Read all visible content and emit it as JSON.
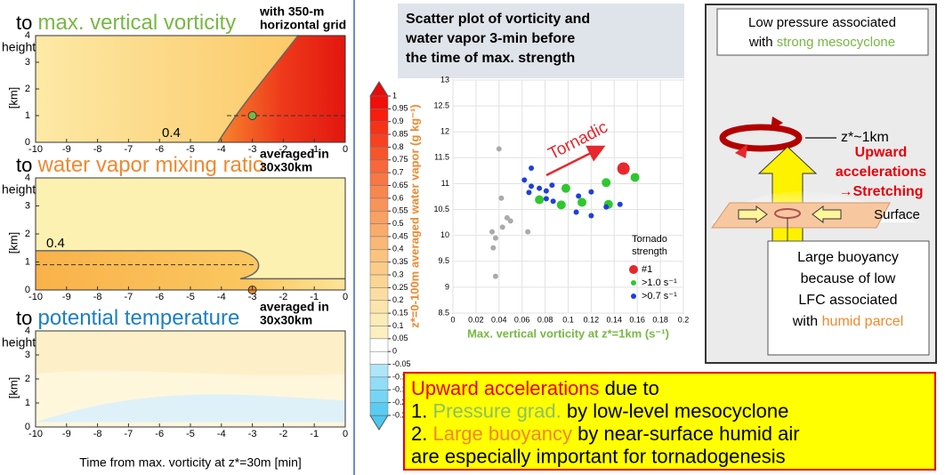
{
  "left": {
    "panels": [
      {
        "prefix": "to",
        "variable": "max. vertical vorticity",
        "color": "#77b843",
        "note": [
          "with 350-m",
          "horizontal grid"
        ],
        "contour_label": "0.4"
      },
      {
        "prefix": "to",
        "variable": "water vapor mixing ratio",
        "color": "#f0882e",
        "note": [
          "averaged in",
          "30x30km"
        ],
        "contour_label": "0.4"
      },
      {
        "prefix": "to",
        "variable": "potential temperature",
        "color": "#1b80c4",
        "note": [
          "averaged in",
          "30x30km"
        ]
      }
    ],
    "ylabel": "height",
    "yunit": "[km]",
    "xticks": [
      -10,
      -9,
      -8,
      -7,
      -6,
      -5,
      -4,
      -3,
      -2,
      -1,
      0
    ],
    "yticks": [
      0,
      1,
      2,
      3,
      4
    ],
    "xlabel": "Time from max. vorticity at z*=30m [min]"
  },
  "colorbar": {
    "ticks": [
      1,
      0.95,
      0.9,
      0.85,
      0.8,
      0.75,
      0.7,
      0.65,
      0.6,
      0.55,
      0.5,
      0.45,
      0.4,
      0.35,
      0.3,
      0.25,
      0.2,
      0.15,
      0.1,
      0.05,
      0,
      -0.05,
      -0.1,
      -0.15,
      -0.2,
      -0.25
    ]
  },
  "chart_data": {
    "type": "scatter",
    "title": [
      "Scatter plot of vorticity and",
      "water vapor 3-min before",
      "the time of max. strength"
    ],
    "xlabel": "Max. vertical vorticity at z*=1km (s⁻¹)",
    "xlabel_color": "#77b843",
    "ylabel": "z*=0-100m averaged water vapor (g kg⁻¹)",
    "ylabel_color": "#f0882e",
    "xlim": [
      0,
      0.2
    ],
    "xticks": [
      0,
      0.02,
      0.04,
      0.06,
      0.08,
      0.1,
      0.12,
      0.14,
      0.16,
      0.18,
      0.2
    ],
    "ylim": [
      8.5,
      13
    ],
    "yticks": [
      8.5,
      9,
      9.5,
      10,
      10.5,
      11,
      11.5,
      12,
      12.5,
      13
    ],
    "grid": true,
    "annotation": "Tornadic",
    "legend_title": [
      "Tornado",
      "strength"
    ],
    "series": [
      {
        "color": "#aaaaaa",
        "size": 3,
        "x": [
          0.04,
          0.042,
          0.047,
          0.05,
          0.043,
          0.034,
          0.037,
          0.035,
          0.065,
          0.037
        ],
        "values": [
          11.67,
          10.72,
          10.34,
          10.28,
          10.16,
          10.07,
          9.95,
          9.76,
          10.07,
          9.21
        ]
      },
      {
        "name": "#1",
        "color": "#e8262b",
        "size": 7,
        "x": [
          0.148
        ],
        "values": [
          11.29
        ]
      },
      {
        "name": ">1.0 s⁻¹",
        "color": "#2ec82e",
        "size": 5,
        "x": [
          0.158,
          0.133,
          0.098,
          0.075,
          0.112,
          0.094,
          0.135
        ],
        "values": [
          11.12,
          11.02,
          10.91,
          10.69,
          10.64,
          10.59,
          10.6
        ]
      },
      {
        "name": ">0.7 s⁻¹",
        "color": "#1f3fdc",
        "size": 3,
        "x": [
          0.068,
          0.062,
          0.068,
          0.075,
          0.066,
          0.081,
          0.086,
          0.081,
          0.087,
          0.109,
          0.12,
          0.107,
          0.12,
          0.133,
          0.145
        ],
        "values": [
          11.3,
          11.07,
          10.95,
          10.91,
          10.83,
          10.86,
          10.97,
          10.71,
          10.66,
          10.76,
          10.84,
          10.45,
          10.38,
          10.55,
          10.6
        ]
      }
    ]
  },
  "diagram": {
    "low_pressure": [
      [
        {
          "text": "Low pressure associated"
        }
      ],
      [
        {
          "text": "with "
        },
        {
          "text": "strong mesocyclone",
          "color": "#77b843"
        }
      ]
    ],
    "height": [
      [
        {
          "text": "z*~1km"
        }
      ]
    ],
    "upward": [
      [
        {
          "text": "Upward",
          "color": "#e8000b"
        }
      ],
      [
        {
          "text": "accelerations",
          "color": "#e8000b"
        }
      ],
      [
        {
          "text": "→Stretching",
          "color": "#e8000b"
        }
      ]
    ],
    "surface": [
      [
        {
          "text": "Surface"
        }
      ]
    ],
    "buoyancy": [
      [
        {
          "text": "Large buoyancy"
        }
      ],
      [
        {
          "text": "because of low"
        }
      ],
      [
        {
          "text": "LFC associated"
        }
      ],
      [
        {
          "text": "with "
        },
        {
          "text": "humid parcel",
          "color": "#f0882e"
        }
      ]
    ]
  },
  "summary": {
    "lines": [
      [
        {
          "text": "Upward accelerations",
          "color": "#e8000b"
        },
        {
          "text": " due to"
        }
      ],
      [
        {
          "text": "1. "
        },
        {
          "text": "Pressure grad.",
          "color": "#8cc063"
        },
        {
          "text": " by low-level mesocyclone"
        }
      ],
      [
        {
          "text": "2. "
        },
        {
          "text": "Large buoyancy",
          "color": "#f0882e"
        },
        {
          "text": " by near-surface humid air"
        }
      ],
      [
        {
          "text": "are especially important for tornadogenesis"
        }
      ]
    ]
  }
}
